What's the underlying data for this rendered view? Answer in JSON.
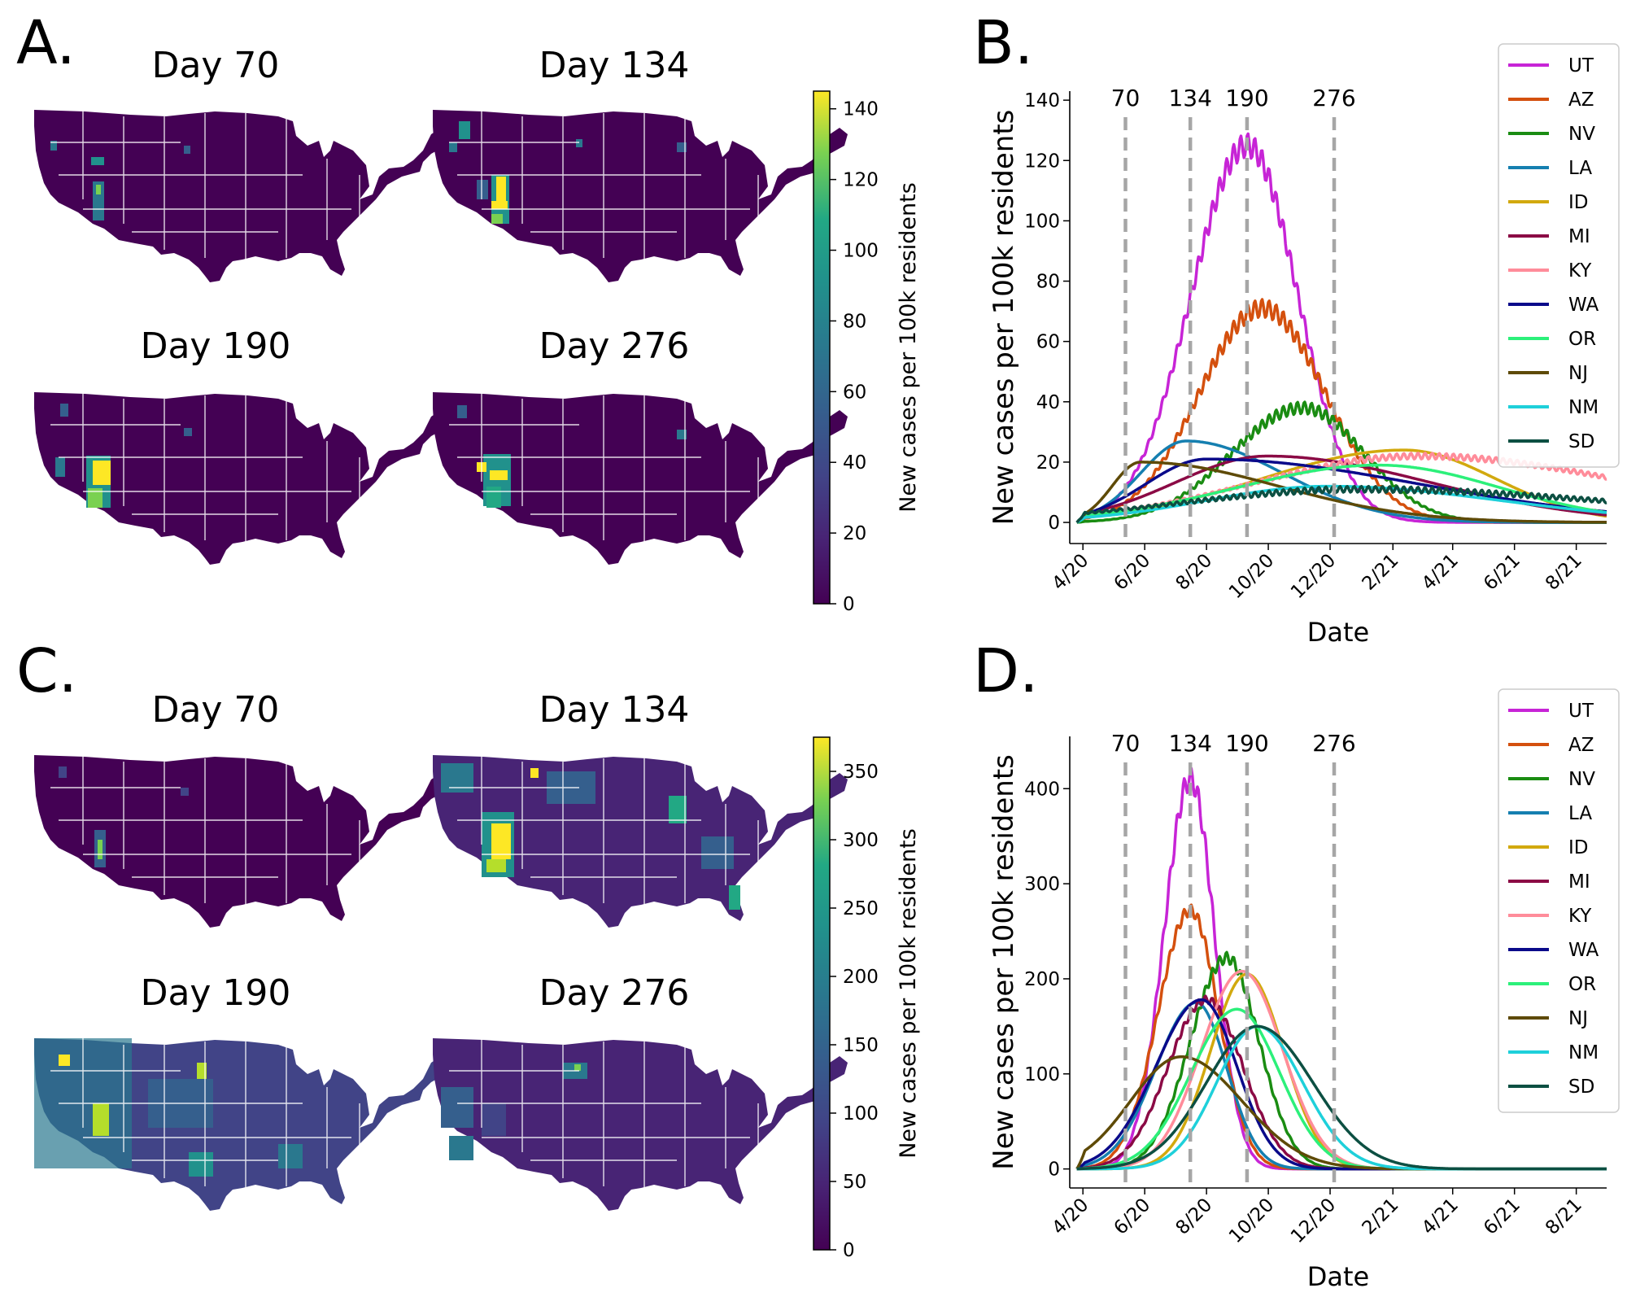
{
  "panels": {
    "A": "A.",
    "B": "B.",
    "C": "C.",
    "D": "D."
  },
  "maps": {
    "A": {
      "titles": [
        "Day 70",
        "Day 134",
        "Day 190",
        "Day 276"
      ]
    },
    "C": {
      "titles": [
        "Day 70",
        "Day 134",
        "Day 190",
        "Day 276"
      ]
    }
  },
  "colorbars": {
    "A": {
      "label": "New cases per 100k residents",
      "ticks": [
        0,
        20,
        40,
        60,
        80,
        100,
        120,
        140
      ],
      "max": 145
    },
    "C": {
      "label": "New cases per 100k residents",
      "ticks": [
        0,
        50,
        100,
        150,
        200,
        250,
        300,
        350
      ],
      "max": 375
    }
  },
  "colors": {
    "UT": "#c724d6",
    "AZ": "#d4500e",
    "NV": "#1a8c12",
    "LA": "#157fb0",
    "ID": "#d2a90e",
    "MI": "#8b0a45",
    "KY": "#ff8c9a",
    "WA": "#0a0a8a",
    "OR": "#2cf07a",
    "NJ": "#5e4a07",
    "NM": "#1ed0da",
    "SD": "#0c4f42",
    "vline": "#a6a6a6",
    "viridis_dark": "#440154",
    "viridis_yellow": "#fde725"
  },
  "chart_data": [
    {
      "id": "B",
      "type": "line",
      "xlabel": "Date",
      "ylabel": "New cases per 100k residents",
      "x_ticks": [
        "4/20",
        "6/20",
        "8/20",
        "10/20",
        "12/20",
        "2/21",
        "4/21",
        "6/21",
        "8/21"
      ],
      "x_tick_days": [
        28,
        89,
        150,
        211,
        272,
        334,
        393,
        454,
        515
      ],
      "xlim": [
        15,
        545
      ],
      "ylim": [
        -7,
        143
      ],
      "y_ticks": [
        0,
        20,
        40,
        60,
        80,
        100,
        120,
        140
      ],
      "vlines": [
        70,
        134,
        190,
        276
      ],
      "vline_labels": [
        "70",
        "134",
        "190",
        "276"
      ],
      "legend": "top-right",
      "series": [
        {
          "name": "UT",
          "peak": 125,
          "center": 190,
          "sigma_left": 55,
          "sigma_right": 50,
          "osc": 4
        },
        {
          "name": "AZ",
          "peak": 71,
          "center": 205,
          "sigma_left": 62,
          "sigma_right": 62,
          "osc": 3
        },
        {
          "name": "NV",
          "peak": 38,
          "center": 245,
          "sigma_left": 70,
          "sigma_right": 60,
          "osc": 2
        },
        {
          "name": "LA",
          "peak": 27,
          "center": 130,
          "sigma_left": 45,
          "sigma_right": 95
        },
        {
          "name": "ID",
          "peak": 24,
          "center": 345,
          "sigma_left": 140,
          "sigma_right": 90
        },
        {
          "name": "MI",
          "peak": 22,
          "center": 210,
          "sigma_left": 90,
          "sigma_right": 160
        },
        {
          "name": "KY",
          "peak": 22,
          "center": 360,
          "sigma_left": 160,
          "sigma_right": 210,
          "osc": 1
        },
        {
          "name": "WA",
          "peak": 21,
          "center": 150,
          "sigma_left": 60,
          "sigma_right": 210
        },
        {
          "name": "OR",
          "peak": 19,
          "center": 320,
          "sigma_left": 140,
          "sigma_right": 120
        },
        {
          "name": "NJ",
          "peak": 20,
          "center": 85,
          "sigma_left": 28,
          "sigma_right": 135
        },
        {
          "name": "NM",
          "peak": 12,
          "center": 270,
          "sigma_left": 120,
          "sigma_right": 170
        },
        {
          "name": "SD",
          "peak": 11,
          "center": 300,
          "sigma_left": 170,
          "sigma_right": 260,
          "osc": 1
        }
      ]
    },
    {
      "id": "D",
      "type": "line",
      "xlabel": "Date",
      "ylabel": "New cases per 100k residents",
      "x_ticks": [
        "4/20",
        "6/20",
        "8/20",
        "10/20",
        "12/20",
        "2/21",
        "4/21",
        "6/21",
        "8/21"
      ],
      "x_tick_days": [
        28,
        89,
        150,
        211,
        272,
        334,
        393,
        454,
        515
      ],
      "xlim": [
        15,
        545
      ],
      "ylim": [
        -20,
        455
      ],
      "y_ticks": [
        0,
        100,
        200,
        300,
        400
      ],
      "vlines": [
        70,
        134,
        190,
        276
      ],
      "vline_labels": [
        "70",
        "134",
        "190",
        "276"
      ],
      "legend": "top-right",
      "series": [
        {
          "name": "UT",
          "peak": 410,
          "center": 134,
          "sigma_left": 26,
          "sigma_right": 24,
          "osc": 12
        },
        {
          "name": "AZ",
          "peak": 272,
          "center": 134,
          "sigma_left": 32,
          "sigma_right": 28,
          "osc": 6
        },
        {
          "name": "NV",
          "peak": 222,
          "center": 170,
          "sigma_left": 36,
          "sigma_right": 32,
          "osc": 6
        },
        {
          "name": "LA",
          "peak": 175,
          "center": 140,
          "sigma_left": 40,
          "sigma_right": 30
        },
        {
          "name": "ID",
          "peak": 205,
          "center": 190,
          "sigma_left": 36,
          "sigma_right": 36
        },
        {
          "name": "MI",
          "peak": 178,
          "center": 150,
          "sigma_left": 38,
          "sigma_right": 36,
          "osc": 4
        },
        {
          "name": "KY",
          "peak": 208,
          "center": 185,
          "sigma_left": 40,
          "sigma_right": 40
        },
        {
          "name": "WA",
          "peak": 178,
          "center": 145,
          "sigma_left": 45,
          "sigma_right": 35
        },
        {
          "name": "OR",
          "peak": 168,
          "center": 180,
          "sigma_left": 45,
          "sigma_right": 42
        },
        {
          "name": "NJ",
          "peak": 118,
          "center": 125,
          "sigma_left": 50,
          "sigma_right": 60
        },
        {
          "name": "NM",
          "peak": 150,
          "center": 200,
          "sigma_left": 40,
          "sigma_right": 45
        },
        {
          "name": "SD",
          "peak": 150,
          "center": 200,
          "sigma_left": 50,
          "sigma_right": 55
        }
      ]
    }
  ]
}
